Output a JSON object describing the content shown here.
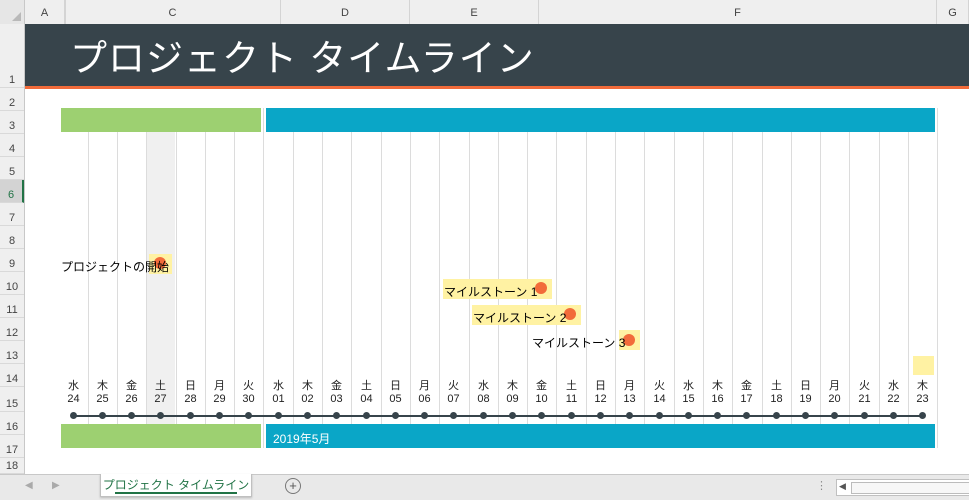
{
  "columns": [
    "A",
    "B",
    "C",
    "D",
    "E",
    "F",
    "G"
  ],
  "rows": [
    "1",
    "2",
    "3",
    "4",
    "5",
    "6",
    "7",
    "8",
    "9",
    "10",
    "11",
    "12",
    "13",
    "14",
    "15",
    "16",
    "17",
    "18"
  ],
  "selected_row": "6",
  "title": "プロジェクト タイムライン",
  "month_label": "2019年5月",
  "days": [
    {
      "dow": "水",
      "day": "24"
    },
    {
      "dow": "木",
      "day": "25"
    },
    {
      "dow": "金",
      "day": "26"
    },
    {
      "dow": "土",
      "day": "27"
    },
    {
      "dow": "日",
      "day": "28"
    },
    {
      "dow": "月",
      "day": "29"
    },
    {
      "dow": "火",
      "day": "30"
    },
    {
      "dow": "水",
      "day": "01"
    },
    {
      "dow": "木",
      "day": "02"
    },
    {
      "dow": "金",
      "day": "03"
    },
    {
      "dow": "土",
      "day": "04"
    },
    {
      "dow": "日",
      "day": "05"
    },
    {
      "dow": "月",
      "day": "06"
    },
    {
      "dow": "火",
      "day": "07"
    },
    {
      "dow": "水",
      "day": "08"
    },
    {
      "dow": "木",
      "day": "09"
    },
    {
      "dow": "金",
      "day": "10"
    },
    {
      "dow": "土",
      "day": "11"
    },
    {
      "dow": "日",
      "day": "12"
    },
    {
      "dow": "月",
      "day": "13"
    },
    {
      "dow": "火",
      "day": "14"
    },
    {
      "dow": "水",
      "day": "15"
    },
    {
      "dow": "木",
      "day": "16"
    },
    {
      "dow": "金",
      "day": "17"
    },
    {
      "dow": "土",
      "day": "18"
    },
    {
      "dow": "日",
      "day": "19"
    },
    {
      "dow": "月",
      "day": "20"
    },
    {
      "dow": "火",
      "day": "21"
    },
    {
      "dow": "水",
      "day": "22"
    },
    {
      "dow": "木",
      "day": "23"
    }
  ],
  "milestones": [
    {
      "label": "プロジェクトの開始",
      "day_index": 3
    },
    {
      "label": "マイルストーン 1",
      "day_index": 16
    },
    {
      "label": "マイルストーン 2",
      "day_index": 17
    },
    {
      "label": "マイルストーン 3",
      "day_index": 19
    }
  ],
  "sheet_tab": "プロジェクト タイムライン",
  "colors": {
    "title_bg": "#37444b",
    "accent": "#f26b3a",
    "green": "#9dd071",
    "teal": "#0aa6c7",
    "highlight": "#fff2a3"
  }
}
